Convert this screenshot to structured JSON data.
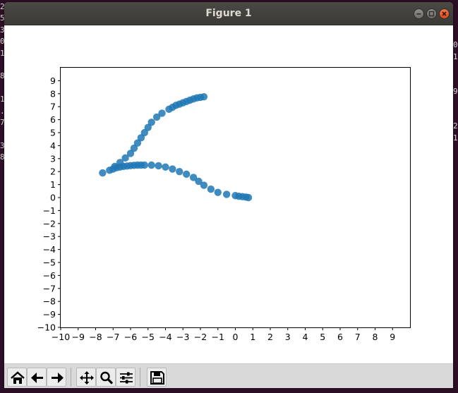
{
  "window": {
    "title": "Figure 1"
  },
  "terminal": {
    "left_column_chars": [
      "2",
      "5",
      "3",
      "0",
      "1",
      "",
      "8",
      "",
      "1",
      ".",
      "7",
      "",
      "3",
      "8"
    ],
    "right_column_chars": [
      "",
      "0",
      "1",
      "",
      "",
      "9",
      "",
      "",
      "2",
      "1"
    ]
  },
  "toolbar": {
    "buttons": [
      {
        "name": "home-button",
        "icon": "home-icon"
      },
      {
        "name": "back-button",
        "icon": "arrow-left-icon"
      },
      {
        "name": "forward-button",
        "icon": "arrow-right-icon"
      },
      {
        "name": "pan-button",
        "icon": "move-icon"
      },
      {
        "name": "zoom-button",
        "icon": "magnifier-icon"
      },
      {
        "name": "configure-subplots-button",
        "icon": "sliders-icon"
      },
      {
        "name": "save-button",
        "icon": "floppy-icon"
      }
    ]
  },
  "chart_data": {
    "type": "scatter",
    "title": "",
    "xlabel": "",
    "ylabel": "",
    "xlim": [
      -10,
      10
    ],
    "ylim": [
      -10,
      10
    ],
    "xticks": [
      -10,
      -9,
      -8,
      -7,
      -6,
      -5,
      -4,
      -3,
      -2,
      -1,
      0,
      1,
      2,
      3,
      4,
      5,
      6,
      7,
      8,
      9
    ],
    "yticks": [
      -10,
      -9,
      -8,
      -7,
      -6,
      -5,
      -4,
      -3,
      -2,
      -1,
      0,
      1,
      2,
      3,
      4,
      5,
      6,
      7,
      8,
      9
    ],
    "grid": false,
    "marker_color": "#1f77b4",
    "series": [
      {
        "points": [
          [
            -7.6,
            1.9
          ],
          [
            -7.2,
            2.1
          ],
          [
            -7.0,
            2.2
          ],
          [
            -6.8,
            2.3
          ],
          [
            -6.6,
            2.35
          ],
          [
            -6.4,
            2.4
          ],
          [
            -6.2,
            2.43
          ],
          [
            -6.0,
            2.46
          ],
          [
            -5.8,
            2.48
          ],
          [
            -5.6,
            2.5
          ],
          [
            -5.4,
            2.5
          ],
          [
            -5.2,
            2.5
          ],
          [
            -4.8,
            2.5
          ],
          [
            -4.4,
            2.45
          ],
          [
            -4.0,
            2.35
          ],
          [
            -3.6,
            2.2
          ],
          [
            -3.2,
            2.0
          ],
          [
            -2.8,
            1.8
          ],
          [
            -2.4,
            1.55
          ],
          [
            -2.1,
            1.25
          ],
          [
            -1.8,
            0.95
          ],
          [
            -1.4,
            0.65
          ],
          [
            -1.0,
            0.4
          ],
          [
            -0.5,
            0.25
          ],
          [
            0.0,
            0.15
          ],
          [
            0.2,
            0.1
          ],
          [
            0.4,
            0.07
          ],
          [
            0.6,
            0.04
          ],
          [
            0.75,
            0.0
          ],
          [
            -6.9,
            2.4
          ],
          [
            -6.6,
            2.7
          ],
          [
            -6.3,
            3.05
          ],
          [
            -6.0,
            3.4
          ],
          [
            -5.8,
            3.8
          ],
          [
            -5.6,
            4.2
          ],
          [
            -5.4,
            4.6
          ],
          [
            -5.2,
            5.0
          ],
          [
            -5.0,
            5.4
          ],
          [
            -4.8,
            5.8
          ],
          [
            -4.5,
            6.2
          ],
          [
            -4.2,
            6.5
          ],
          [
            -3.8,
            6.8
          ],
          [
            -3.6,
            6.95
          ],
          [
            -3.4,
            7.1
          ],
          [
            -3.2,
            7.2
          ],
          [
            -3.0,
            7.3
          ],
          [
            -2.8,
            7.4
          ],
          [
            -2.6,
            7.5
          ],
          [
            -2.4,
            7.6
          ],
          [
            -2.2,
            7.68
          ],
          [
            -2.0,
            7.72
          ],
          [
            -1.8,
            7.76
          ]
        ]
      }
    ]
  }
}
